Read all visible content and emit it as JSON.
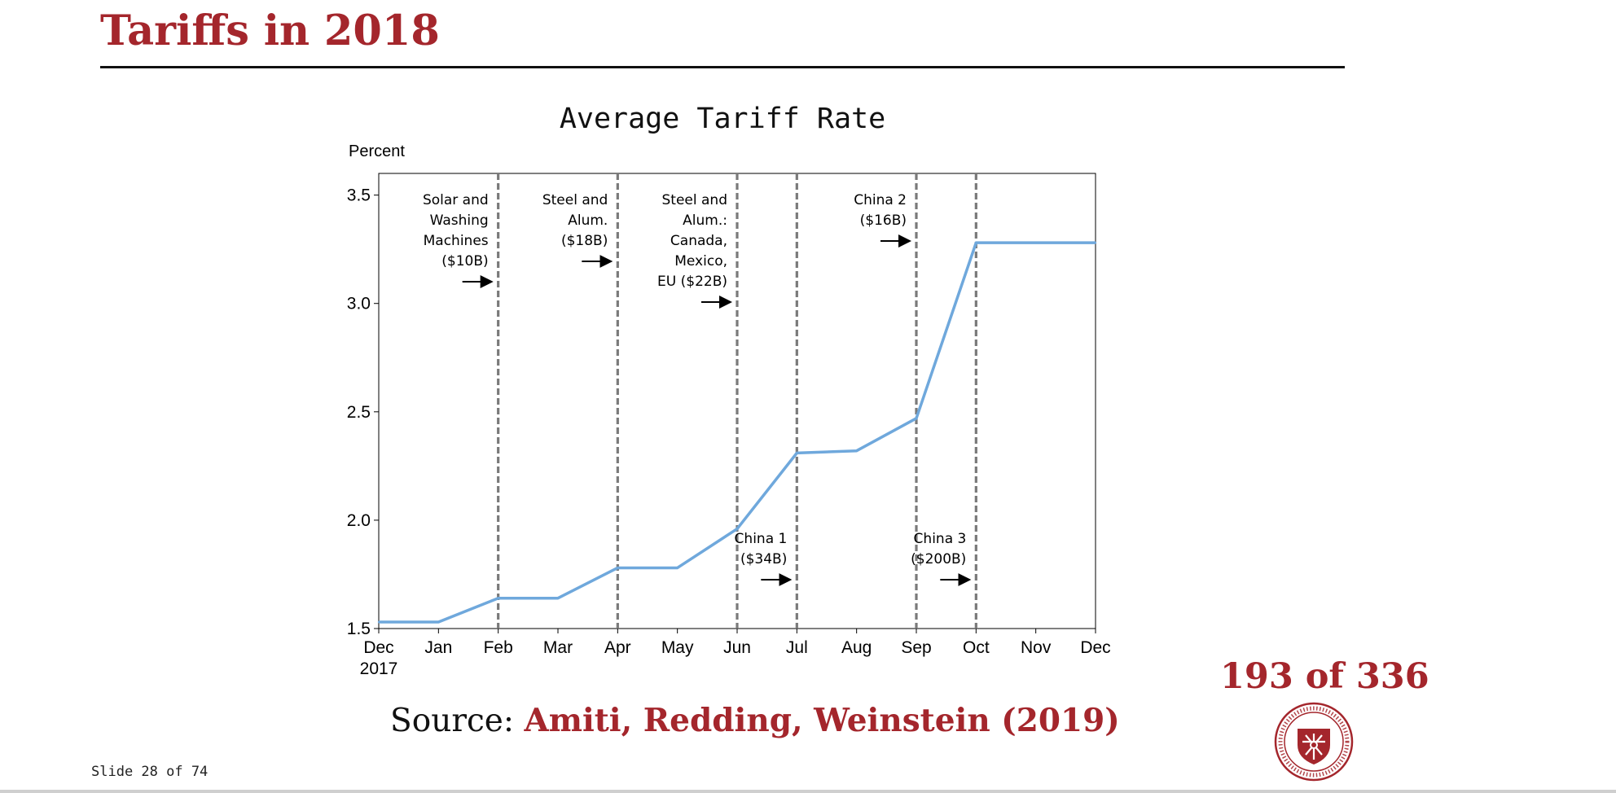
{
  "slide": {
    "title": "Tariffs in 2018",
    "counter": "193 of 336",
    "slide_number": "Slide 28 of 74",
    "source_prefix": "Source:",
    "source_ref": "Amiti, Redding, Weinstein (2019)"
  },
  "colors": {
    "title": "#a4262c",
    "line": "#6fa8dc",
    "event_line": "#7a7a7a"
  },
  "chart_data": {
    "type": "line",
    "title": "Average Tariff Rate",
    "ylabel": "Percent",
    "ylim": [
      1.5,
      3.6
    ],
    "yticks": [
      1.5,
      2.0,
      2.5,
      3.0,
      3.5
    ],
    "ytick_labels": [
      "1.5",
      "2.0",
      "2.5",
      "3.0",
      "3.5"
    ],
    "categories": [
      "Dec\n2017",
      "Jan",
      "Feb",
      "Mar",
      "Apr",
      "May",
      "Jun",
      "Jul",
      "Aug",
      "Sep",
      "Oct",
      "Nov",
      "Dec"
    ],
    "series": [
      {
        "values": [
          1.53,
          1.53,
          1.64,
          1.64,
          1.78,
          1.78,
          1.96,
          2.31,
          2.32,
          2.47,
          3.28,
          3.28,
          3.28
        ]
      }
    ],
    "events": [
      {
        "month_index": 2,
        "label": "Solar and\nWashing\nMachines\n($10B)",
        "position": "top"
      },
      {
        "month_index": 4,
        "label": "Steel and\nAlum.\n($18B)",
        "position": "top"
      },
      {
        "month_index": 6,
        "label": "Steel and\nAlum.:\nCanada,\nMexico,\nEU ($22B)",
        "position": "top"
      },
      {
        "month_index": 7,
        "label": "China 1\n($34B)",
        "position": "bottom"
      },
      {
        "month_index": 9,
        "label": "China 2\n($16B)",
        "position": "top"
      },
      {
        "month_index": 10,
        "label": "China 3\n($200B)",
        "position": "bottom"
      }
    ],
    "grid": false,
    "legend": "none"
  }
}
